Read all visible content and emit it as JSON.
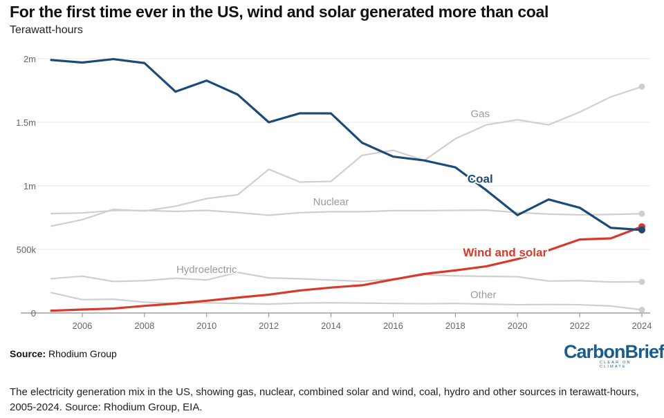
{
  "title": "For the first time ever in the US, wind and solar generated more than coal",
  "subtitle": "Terawatt-hours",
  "source_label": "Source:",
  "source_value": "Rhodium Group",
  "logo": {
    "name": "CarbonBrief",
    "tagline": "CLEAR ON CLIMATE"
  },
  "caption": "The electricity generation mix in the US, showing gas, nuclear, combined solar and wind, coal, hydro and other sources in terawatt-hours, 2005-2024. Source: Rhodium Group, EIA.",
  "chart_data": {
    "type": "line",
    "title": "For the first time ever in the US, wind and solar generated more than coal",
    "ylabel": "Terawatt-hours",
    "xlabel": "",
    "ylim": [
      0,
      2000000
    ],
    "yticks": [
      0,
      500000,
      1000000,
      1500000,
      2000000
    ],
    "ytick_labels": [
      "0",
      "500k",
      "1m",
      "1.5m",
      "2m"
    ],
    "xticks": [
      2006,
      2008,
      2010,
      2012,
      2014,
      2016,
      2018,
      2020,
      2022,
      2024
    ],
    "grid": true,
    "x": [
      2005,
      2006,
      2007,
      2008,
      2009,
      2010,
      2011,
      2012,
      2013,
      2014,
      2015,
      2016,
      2017,
      2018,
      2019,
      2020,
      2021,
      2022,
      2023,
      2024
    ],
    "series": [
      {
        "name": "Gas",
        "label": "Gas",
        "color": "#cfcfcf",
        "end_marker": true,
        "values": [
          683000,
          734000,
          815000,
          802000,
          840000,
          900000,
          930000,
          1130000,
          1030000,
          1035000,
          1240000,
          1280000,
          1200000,
          1370000,
          1480000,
          1520000,
          1480000,
          1580000,
          1700000,
          1780000
        ]
      },
      {
        "name": "Nuclear",
        "label": "Nuclear",
        "color": "#cfcfcf",
        "end_marker": true,
        "values": [
          782000,
          787000,
          806000,
          806000,
          799000,
          807000,
          790000,
          769000,
          789000,
          797000,
          797000,
          805000,
          805000,
          807000,
          809000,
          790000,
          778000,
          772000,
          775000,
          781000
        ]
      },
      {
        "name": "Hydroelectric",
        "label": "Hydroelectric",
        "color": "#cfcfcf",
        "end_marker": true,
        "values": [
          270000,
          289000,
          248000,
          254000,
          273000,
          260000,
          319000,
          276000,
          269000,
          259000,
          249000,
          268000,
          300000,
          292000,
          288000,
          285000,
          251000,
          254000,
          244000,
          245000
        ]
      },
      {
        "name": "Other",
        "label": "Other",
        "color": "#cfcfcf",
        "end_marker": true,
        "values": [
          160000,
          105000,
          108000,
          85000,
          75000,
          80000,
          75000,
          70000,
          78000,
          80000,
          78000,
          75000,
          73000,
          75000,
          70000,
          65000,
          67000,
          65000,
          55000,
          25000
        ]
      },
      {
        "name": "Wind and solar",
        "label": "Wind and solar",
        "color": "#d9392b",
        "end_marker": true,
        "values": [
          18000,
          27000,
          35000,
          56000,
          74000,
          96000,
          121000,
          144000,
          177000,
          200000,
          218000,
          263000,
          307000,
          335000,
          367000,
          424000,
          493000,
          578000,
          587000,
          679000
        ]
      },
      {
        "name": "Coal",
        "label": "Coal",
        "color": "#1b4a78",
        "end_marker": true,
        "values": [
          1990000,
          1970000,
          1997000,
          1966000,
          1741000,
          1828000,
          1718000,
          1500000,
          1571000,
          1570000,
          1339000,
          1230000,
          1200000,
          1146000,
          965000,
          770000,
          893000,
          828000,
          670000,
          653000
        ]
      }
    ]
  }
}
